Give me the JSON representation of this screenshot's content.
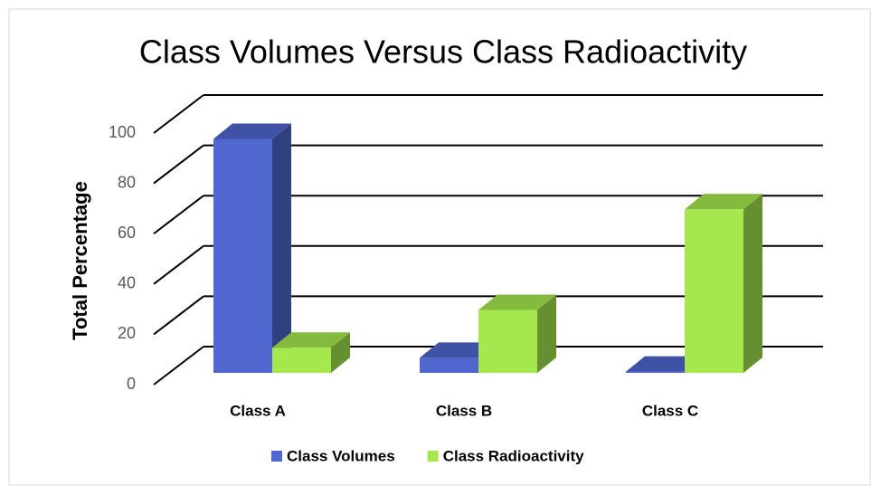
{
  "chart_data": {
    "type": "bar3d",
    "title": "Class Volumes Versus Class Radioactivity",
    "y_label": "Total Percentage",
    "categories": [
      "Class A",
      "Class B",
      "Class C"
    ],
    "series": [
      {
        "name": "Class Volumes",
        "color": "#4f67cf",
        "values": [
          93,
          6,
          0.5
        ]
      },
      {
        "name": "Class Radioactivity",
        "color": "#a5e84e",
        "values": [
          10,
          25,
          65
        ]
      }
    ],
    "ylim": [
      0,
      100
    ],
    "yticks": [
      0,
      20,
      40,
      60,
      80,
      100
    ],
    "grid": true,
    "legend": "bottom"
  }
}
